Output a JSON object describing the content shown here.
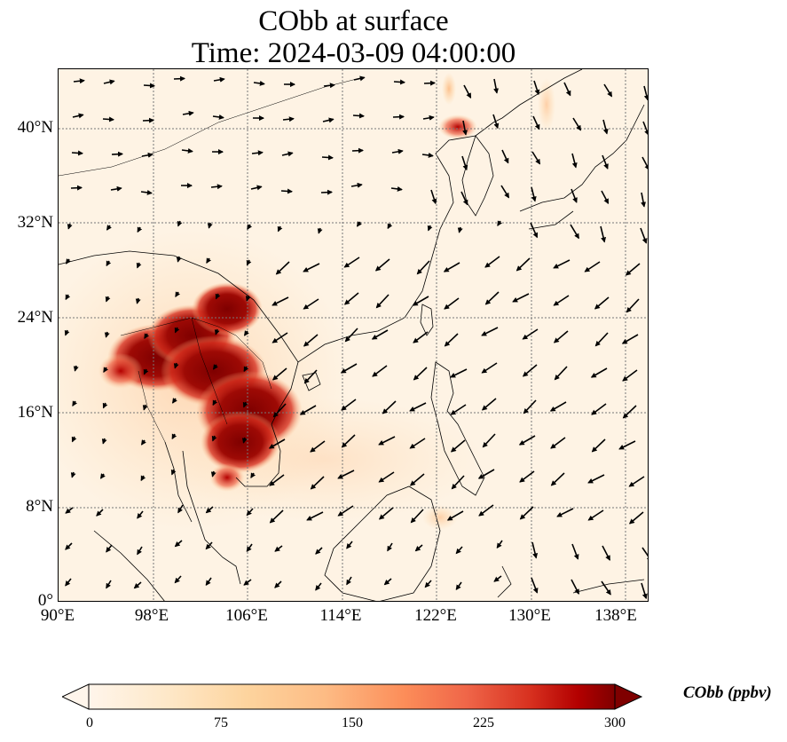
{
  "title_line1": "CObb at surface",
  "title_line2": "Time: 2024-03-09 04:00:00",
  "map": {
    "lon_range": [
      90,
      140
    ],
    "lat_range": [
      0,
      45
    ],
    "lat_ticks": [
      "0°",
      "8°N",
      "16°N",
      "24°N",
      "32°N",
      "40°N"
    ],
    "lon_ticks": [
      "90°E",
      "98°E",
      "106°E",
      "114°E",
      "122°E",
      "130°E",
      "138°E"
    ],
    "gridlines": true,
    "overlays": [
      "coastlines",
      "country-borders",
      "wind-vectors"
    ]
  },
  "colorbar": {
    "label": "CObb (ppbv)",
    "ticks": [
      "0",
      "75",
      "150",
      "225",
      "300"
    ],
    "vmin": 0,
    "vmax": 300,
    "extend": "both",
    "cmap_colors": [
      "#fff5eb",
      "#fdd49e",
      "#fdbb84",
      "#fc8d59",
      "#ef6548",
      "#d7301f",
      "#b30000",
      "#7f0000"
    ]
  }
}
